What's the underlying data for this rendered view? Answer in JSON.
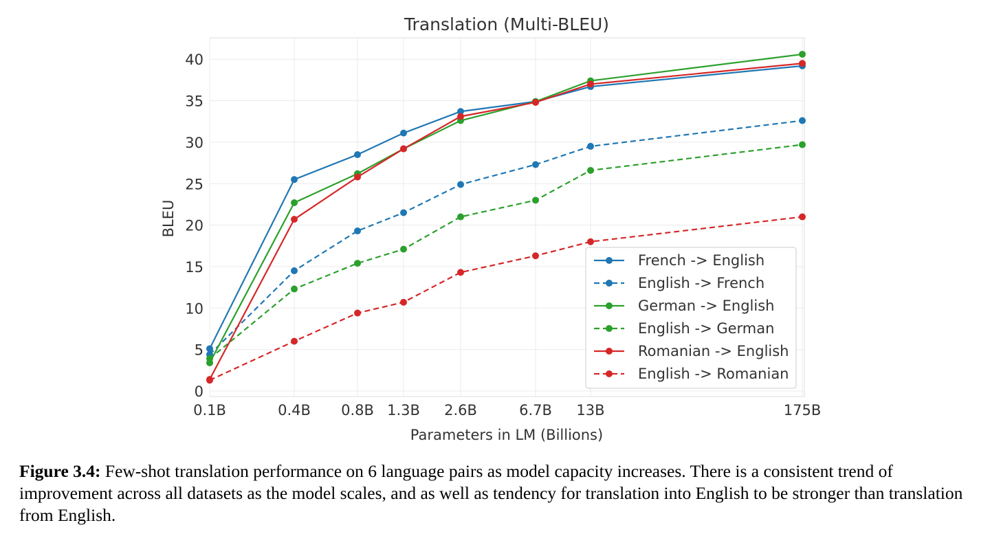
{
  "chart_data": {
    "type": "line",
    "title": "Translation (Multi-BLEU)",
    "xlabel": "Parameters in LM (Billions)",
    "ylabel": "BLEU",
    "categories": [
      "0.1B",
      "0.4B",
      "0.8B",
      "1.3B",
      "2.6B",
      "6.7B",
      "13B",
      "175B"
    ],
    "x_scale": "log",
    "ylim": [
      0,
      42
    ],
    "yticks": [
      0,
      5,
      10,
      15,
      20,
      25,
      30,
      35,
      40
    ],
    "grid": true,
    "legend_position": "lower-right",
    "series": [
      {
        "name": "French -> English",
        "color": "#1f77b4",
        "style": "solid",
        "values": [
          5.1,
          25.5,
          28.5,
          31.1,
          33.7,
          34.9,
          36.7,
          39.2
        ]
      },
      {
        "name": "English -> French",
        "color": "#1f77b4",
        "style": "dashed",
        "values": [
          4.4,
          14.5,
          19.3,
          21.5,
          24.9,
          27.3,
          29.5,
          32.6
        ]
      },
      {
        "name": "German -> English",
        "color": "#2ca02c",
        "style": "solid",
        "values": [
          3.4,
          22.7,
          26.2,
          29.2,
          32.6,
          34.9,
          37.4,
          40.6
        ]
      },
      {
        "name": "English -> German",
        "color": "#2ca02c",
        "style": "dashed",
        "values": [
          3.9,
          12.3,
          15.4,
          17.1,
          21.0,
          23.0,
          26.6,
          29.7
        ]
      },
      {
        "name": "Romanian -> English",
        "color": "#d62728",
        "style": "solid",
        "values": [
          1.4,
          20.7,
          25.8,
          29.2,
          33.1,
          34.8,
          37.0,
          39.5
        ]
      },
      {
        "name": "English -> Romanian",
        "color": "#d62728",
        "style": "dashed",
        "values": [
          1.3,
          6.0,
          9.4,
          10.7,
          14.3,
          16.3,
          18.0,
          21.0
        ]
      }
    ]
  },
  "caption": {
    "label": "Figure 3.4:",
    "text": "Few-shot translation performance on 6 language pairs as model capacity increases. There is a consistent trend of improvement across all datasets as the model scales, and as well as tendency for translation into English to be stronger than translation from English."
  }
}
